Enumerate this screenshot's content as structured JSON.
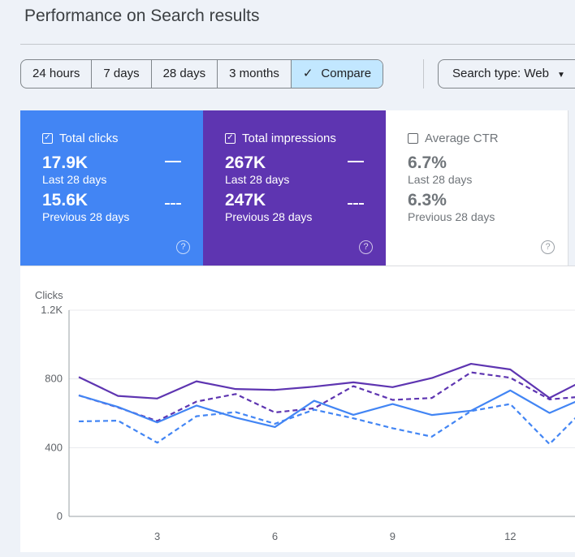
{
  "header": {
    "title": "Performance on Search results"
  },
  "filters": {
    "ranges": [
      "24 hours",
      "7 days",
      "28 days",
      "3 months"
    ],
    "compare": "Compare",
    "compare_icon": "check-icon",
    "search_type": "Search type: Web"
  },
  "cards": [
    {
      "label": "Total clicks",
      "current": "17.9K",
      "current_label": "Last 28 days",
      "previous": "15.6K",
      "previous_label": "Previous 28 days",
      "checked": true,
      "color": "#4285f4"
    },
    {
      "label": "Total impressions",
      "current": "267K",
      "current_label": "Last 28 days",
      "previous": "247K",
      "previous_label": "Previous 28 days",
      "checked": true,
      "color": "#5e35b1"
    },
    {
      "label": "Average CTR",
      "current": "6.7%",
      "current_label": "Last 28 days",
      "previous": "6.3%",
      "previous_label": "Previous 28 days",
      "checked": false
    }
  ],
  "chart_data": {
    "type": "line",
    "ylabel": "Clicks",
    "ylim": [
      0,
      1200
    ],
    "yticks": [
      "0",
      "400",
      "800",
      "1.2K"
    ],
    "ytick_values": [
      0,
      400,
      800,
      1200
    ],
    "xticks": [
      "3",
      "6",
      "9",
      "12"
    ],
    "xtick_values": [
      3,
      6,
      9,
      12
    ],
    "xlim": [
      1,
      13.65
    ],
    "x": [
      1,
      2,
      3,
      4,
      5,
      6,
      7,
      8,
      9,
      10,
      11,
      12,
      13,
      14
    ],
    "series": [
      {
        "name": "Total impressions (Last 28 days)",
        "color": "#5e35b1",
        "dashed": false,
        "values": [
          811,
          701,
          686,
          786,
          741,
          736,
          755,
          780,
          752,
          805,
          888,
          855,
          689,
          806
        ]
      },
      {
        "name": "Total impressions (Previous 28 days)",
        "color": "#5e35b1",
        "dashed": true,
        "values": [
          704,
          634,
          555,
          668,
          712,
          605,
          629,
          758,
          678,
          689,
          838,
          807,
          681,
          700
        ]
      },
      {
        "name": "Total clicks (Last 28 days)",
        "color": "#4285f4",
        "dashed": false,
        "values": [
          704,
          637,
          547,
          645,
          575,
          520,
          673,
          591,
          654,
          590,
          615,
          733,
          602,
          700
        ]
      },
      {
        "name": "Total clicks (Previous 28 days)",
        "color": "#4285f4",
        "dashed": true,
        "values": [
          553,
          557,
          429,
          583,
          607,
          539,
          621,
          571,
          513,
          464,
          613,
          654,
          421,
          650
        ]
      }
    ]
  }
}
